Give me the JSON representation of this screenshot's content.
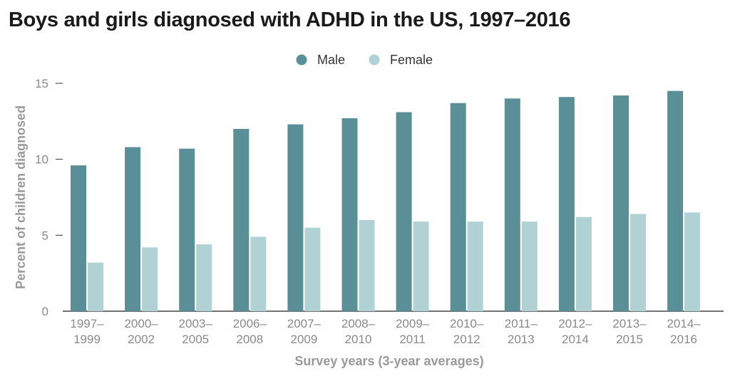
{
  "chart_data": {
    "type": "bar",
    "title": "Boys and girls diagnosed with ADHD in the US, 1997–2016",
    "xlabel": "Survey years (3-year averages)",
    "ylabel": "Percent of children diagnosed",
    "ylim": [
      0,
      15
    ],
    "yticks": [
      0,
      5,
      10,
      15
    ],
    "grid": false,
    "legend_position": "top-center",
    "categories": [
      [
        "1997–",
        "1999"
      ],
      [
        "2000–",
        "2002"
      ],
      [
        "2003–",
        "2005"
      ],
      [
        "2006–",
        "2008"
      ],
      [
        "2007–",
        "2009"
      ],
      [
        "2008–",
        "2010"
      ],
      [
        "2009–",
        "2011"
      ],
      [
        "2010–",
        "2012"
      ],
      [
        "2011–",
        "2013"
      ],
      [
        "2012–",
        "2014"
      ],
      [
        "2013–",
        "2015"
      ],
      [
        "2014–",
        "2016"
      ]
    ],
    "series": [
      {
        "name": "Male",
        "color": "#5b8f98",
        "values": [
          9.6,
          10.8,
          10.7,
          12.0,
          12.3,
          12.7,
          13.1,
          13.7,
          14.0,
          14.1,
          14.2,
          14.5
        ]
      },
      {
        "name": "Female",
        "color": "#b1d2d5",
        "values": [
          3.2,
          4.2,
          4.4,
          4.9,
          5.5,
          6.0,
          5.9,
          5.9,
          5.9,
          6.2,
          6.4,
          6.5
        ]
      }
    ]
  }
}
